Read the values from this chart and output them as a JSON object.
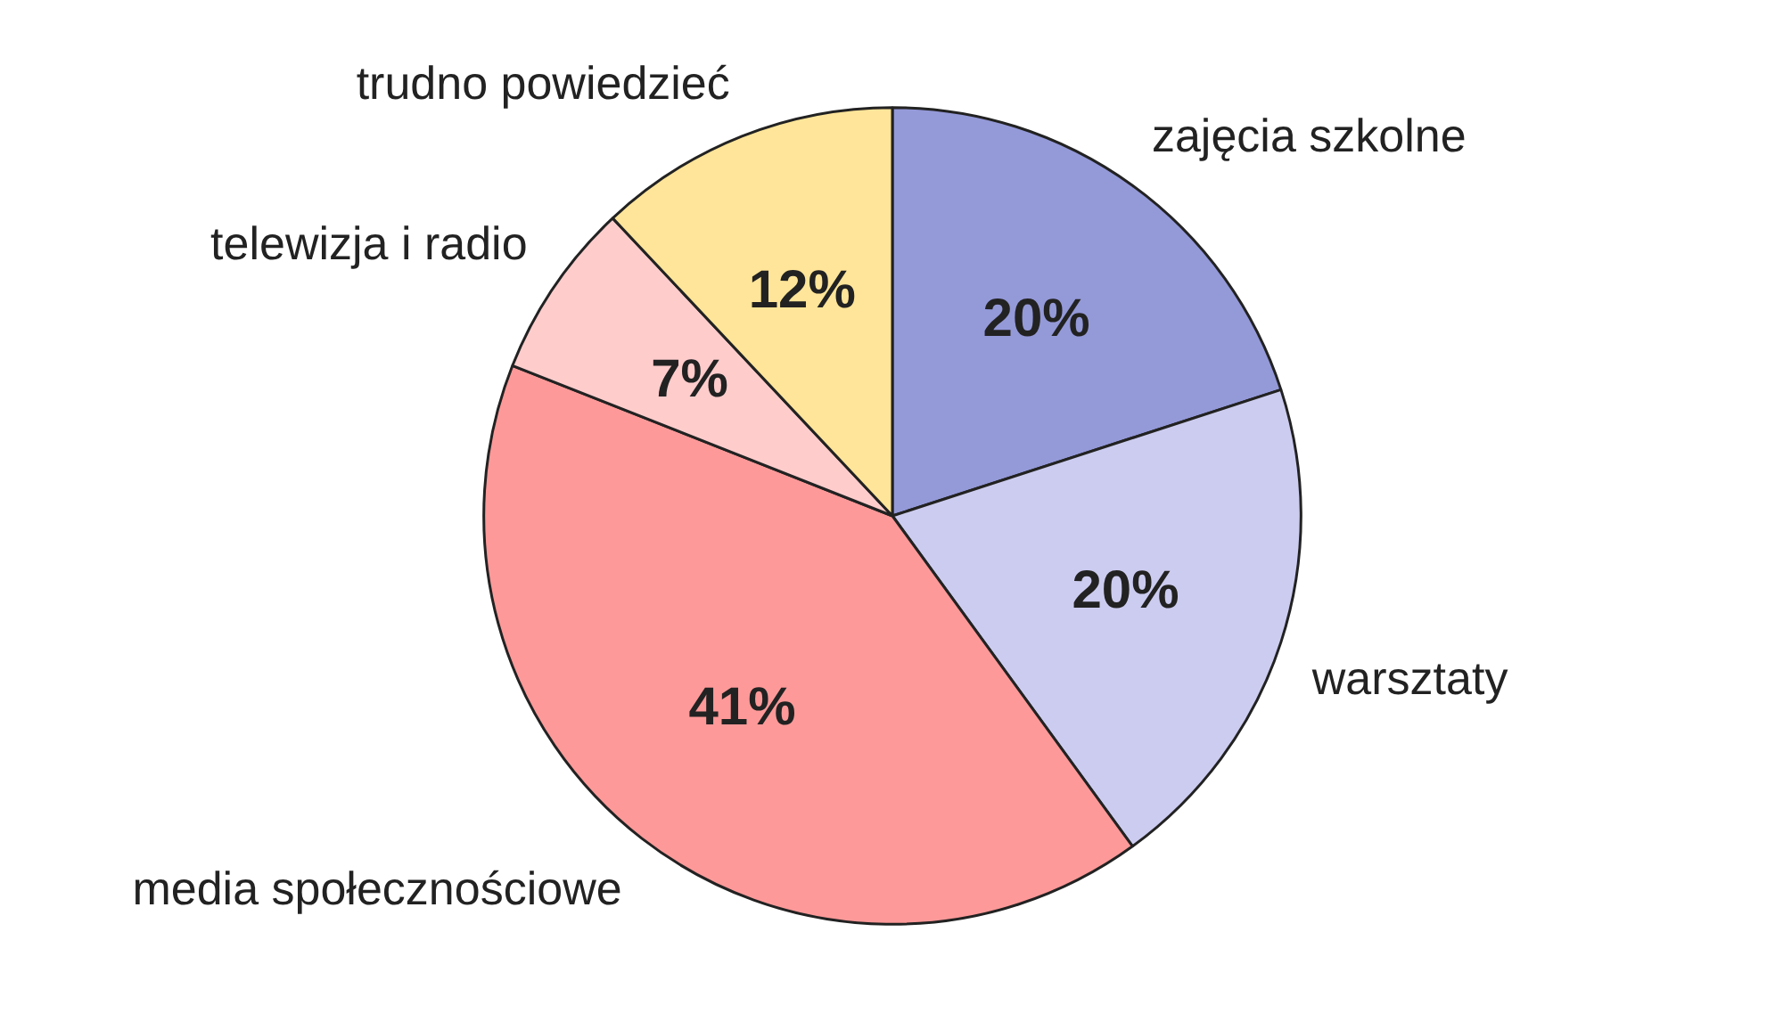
{
  "chart_data": {
    "type": "pie",
    "categories": [
      "zajęcia szkolne",
      "warsztaty",
      "media społecznościowe",
      "telewizja i radio",
      "trudno powiedzieć"
    ],
    "values": [
      20,
      20,
      41,
      7,
      12
    ],
    "colors": [
      "#9499d8",
      "#ccccf0",
      "#fe9999",
      "#ffcccc",
      "#ffe599"
    ],
    "value_labels": [
      "20%",
      "20%",
      "41%",
      "7%",
      "12%"
    ]
  }
}
